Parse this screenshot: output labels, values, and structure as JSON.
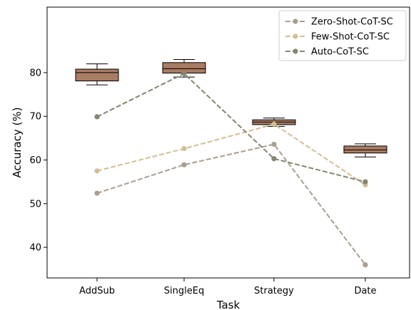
{
  "chart_data": {
    "type": "box+line",
    "xlabel": "Task",
    "ylabel": "Accuracy (%)",
    "categories": [
      "AddSub",
      "SingleEq",
      "Strategy",
      "Date"
    ],
    "ylim": [
      33,
      95
    ],
    "yticks": [
      "40",
      "50",
      "60",
      "70",
      "80"
    ],
    "legend_position": "upper-right",
    "boxes": [
      {
        "category": "AddSub",
        "min": 77.2,
        "q1": 78.1,
        "median": 80.0,
        "q3": 80.8,
        "max": 82.0
      },
      {
        "category": "SingleEq",
        "min": 79.0,
        "q1": 79.9,
        "median": 80.9,
        "q3": 82.3,
        "max": 83.0
      },
      {
        "category": "Strategy",
        "min": 67.7,
        "q1": 68.1,
        "median": 68.7,
        "q3": 69.2,
        "max": 69.6
      },
      {
        "category": "Date",
        "min": 60.7,
        "q1": 61.6,
        "median": 62.3,
        "q3": 63.2,
        "max": 63.7
      }
    ],
    "box_color": "#a97c63",
    "series": [
      {
        "name": "Zero-Shot-CoT-SC",
        "values": [
          52.4,
          58.9,
          63.6,
          36.0
        ],
        "color": "#a89e92"
      },
      {
        "name": "Few-Shot-CoT-SC",
        "values": [
          57.5,
          62.6,
          68.2,
          54.3
        ],
        "color": "#d2bf94"
      },
      {
        "name": "Auto-CoT-SC",
        "values": [
          69.9,
          79.8,
          60.3,
          55.0
        ],
        "color": "#858570"
      }
    ]
  }
}
